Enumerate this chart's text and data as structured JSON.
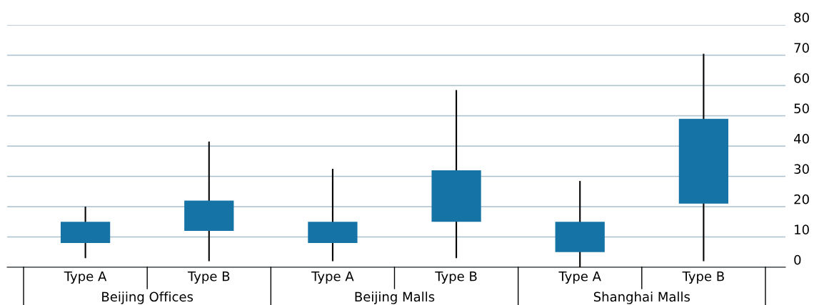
{
  "chart_data": {
    "type": "candlestick",
    "categories": [
      "Type A",
      "Type B",
      "Type A",
      "Type B",
      "Type A",
      "Type B"
    ],
    "ohlc": [
      [
        8,
        20,
        3,
        15
      ],
      [
        12,
        41.5,
        2,
        22
      ],
      [
        8,
        32.5,
        2,
        15
      ],
      [
        15,
        58.5,
        3,
        32
      ],
      [
        5,
        28.5,
        0,
        15
      ],
      [
        21,
        70.5,
        2,
        49
      ]
    ],
    "color": "#1673a5",
    "annotations": [
      "Beijing Offices",
      "Beijing Malls",
      "Shanghai Malls"
    ],
    "ylim": [
      0,
      80
    ],
    "yticks": [
      0,
      10,
      20,
      30,
      40,
      50,
      60,
      70,
      80
    ],
    "grid": "y"
  }
}
